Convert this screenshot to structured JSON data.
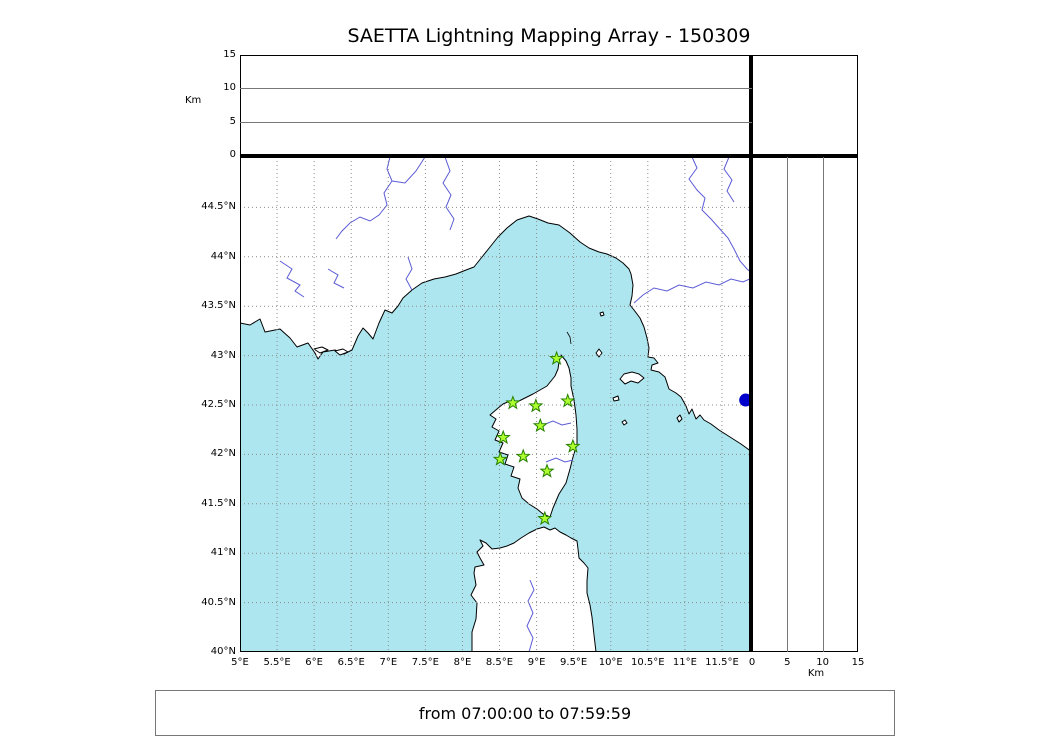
{
  "title": "SAETTA Lightning Mapping Array - 150309",
  "footer": "from 07:00:00 to 07:59:59",
  "altitude_axis": {
    "label": "Km",
    "range_km": [
      0,
      15
    ],
    "ticks_km": [
      0,
      5,
      10,
      15
    ],
    "grid_km": [
      5,
      10
    ]
  },
  "map": {
    "lon_range": [
      5,
      11.905
    ],
    "lat_range": [
      40,
      45.01
    ],
    "lon_ticks": [
      {
        "value": 5,
        "label": "5°E"
      },
      {
        "value": 5.5,
        "label": "5.5°E"
      },
      {
        "value": 6,
        "label": "6°E"
      },
      {
        "value": 6.5,
        "label": "6.5°E"
      },
      {
        "value": 7,
        "label": "7°E"
      },
      {
        "value": 7.5,
        "label": "7.5°E"
      },
      {
        "value": 8,
        "label": "8°E"
      },
      {
        "value": 8.5,
        "label": "8.5°E"
      },
      {
        "value": 9,
        "label": "9°E"
      },
      {
        "value": 9.5,
        "label": "9.5°E"
      },
      {
        "value": 10,
        "label": "10°E"
      },
      {
        "value": 10.5,
        "label": "10.5°E"
      },
      {
        "value": 11,
        "label": "11°E"
      },
      {
        "value": 11.5,
        "label": "11.5°E"
      }
    ],
    "lat_ticks": [
      {
        "value": 40,
        "label": "40°N"
      },
      {
        "value": 40.5,
        "label": "40.5°N"
      },
      {
        "value": 41,
        "label": "41°N"
      },
      {
        "value": 41.5,
        "label": "41.5°N"
      },
      {
        "value": 42,
        "label": "42°N"
      },
      {
        "value": 42.5,
        "label": "42.5°N"
      },
      {
        "value": 43,
        "label": "43°N"
      },
      {
        "value": 43.5,
        "label": "43.5°N"
      },
      {
        "value": 44,
        "label": "44°N"
      },
      {
        "value": 44.5,
        "label": "44.5°N"
      }
    ],
    "lake": {
      "lon": 11.82,
      "lat": 42.55
    }
  },
  "stations": [
    {
      "lon": 9.27,
      "lat": 42.97
    },
    {
      "lon": 8.68,
      "lat": 42.52
    },
    {
      "lon": 8.99,
      "lat": 42.49
    },
    {
      "lon": 9.42,
      "lat": 42.54
    },
    {
      "lon": 9.05,
      "lat": 42.29
    },
    {
      "lon": 8.55,
      "lat": 42.17
    },
    {
      "lon": 9.49,
      "lat": 42.08
    },
    {
      "lon": 8.51,
      "lat": 41.95
    },
    {
      "lon": 8.82,
      "lat": 41.98
    },
    {
      "lon": 9.14,
      "lat": 41.83
    },
    {
      "lon": 9.11,
      "lat": 41.35
    }
  ],
  "colors": {
    "sea": "#aee6ef",
    "land": "#ffffff",
    "coast": "#000000",
    "river": "#5b5bd6",
    "grid": "#8c8c8c",
    "station_fill": "#adff2f",
    "station_edge": "#267f00",
    "lake": "#0000cd"
  },
  "chart_data": {
    "type": "scatter",
    "title": "SAETTA Lightning Mapping Array - 150309",
    "time_window": "from 07:00:00 to 07:59:59",
    "panels": [
      {
        "id": "altitude-vs-longitude",
        "position": "top",
        "ylabel": "Km",
        "ylim": [
          0,
          15
        ],
        "yticks": [
          0,
          5,
          10,
          15
        ],
        "grid_lines_km": [
          5,
          10
        ],
        "points": []
      },
      {
        "id": "map-corsica-region",
        "position": "main",
        "xlim_deg_e": [
          5,
          11.9
        ],
        "ylim_deg_n": [
          40,
          45.0
        ],
        "xtick_labels": [
          "5°E",
          "5.5°E",
          "6°E",
          "6.5°E",
          "7°E",
          "7.5°E",
          "8°E",
          "8.5°E",
          "9°E",
          "9.5°E",
          "10°E",
          "10.5°E",
          "11°E",
          "11.5°E"
        ],
        "ytick_labels": [
          "40°N",
          "40.5°N",
          "41°N",
          "41.5°N",
          "42°N",
          "42.5°N",
          "43°N",
          "43.5°N",
          "44°N",
          "44.5°N"
        ],
        "grid": "dotted 0.5 degree graticule",
        "series": [
          {
            "name": "lma-stations",
            "marker": "star",
            "color": "#adff2f",
            "points_lon_lat": [
              [
                9.27,
                42.97
              ],
              [
                8.68,
                42.52
              ],
              [
                8.99,
                42.49
              ],
              [
                9.42,
                42.54
              ],
              [
                9.05,
                42.29
              ],
              [
                8.55,
                42.17
              ],
              [
                9.49,
                42.08
              ],
              [
                8.51,
                41.95
              ],
              [
                8.82,
                41.98
              ],
              [
                9.14,
                41.83
              ],
              [
                9.11,
                41.35
              ]
            ]
          }
        ],
        "lightning_sources": []
      },
      {
        "id": "altitude-vs-latitude",
        "position": "right",
        "xlabel": "Km",
        "xlim": [
          0,
          15
        ],
        "xticks": [
          0,
          5,
          10,
          15
        ],
        "grid_lines_km": [
          5,
          10
        ],
        "points": []
      }
    ],
    "legend_position": "none"
  }
}
